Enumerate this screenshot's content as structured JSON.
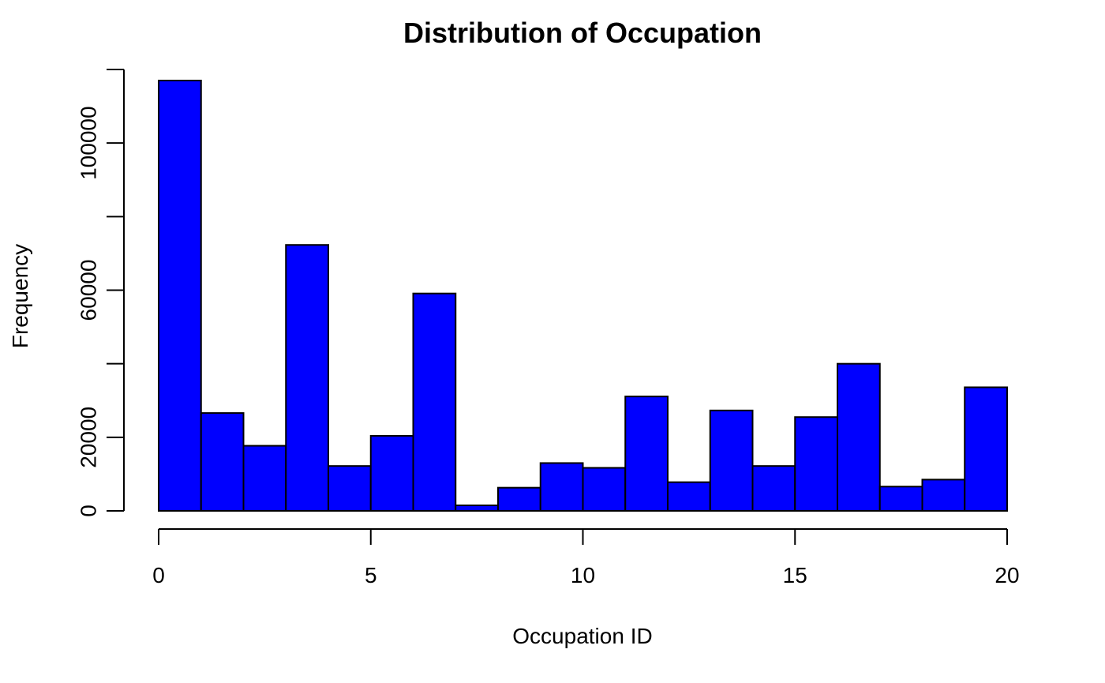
{
  "chart_data": {
    "type": "bar",
    "subtype": "histogram",
    "title": "Distribution of Occupation",
    "xlabel": "Occupation ID",
    "ylabel": "Frequency",
    "bar_color": "#0000ff",
    "edge_color": "#000000",
    "bins": [
      {
        "x0": 0,
        "x1": 1,
        "count": 117000
      },
      {
        "x0": 1,
        "x1": 2,
        "count": 26600
      },
      {
        "x0": 2,
        "x1": 3,
        "count": 17700
      },
      {
        "x0": 3,
        "x1": 4,
        "count": 72300
      },
      {
        "x0": 4,
        "x1": 5,
        "count": 12200
      },
      {
        "x0": 5,
        "x1": 6,
        "count": 20400
      },
      {
        "x0": 6,
        "x1": 7,
        "count": 59100
      },
      {
        "x0": 7,
        "x1": 8,
        "count": 1500
      },
      {
        "x0": 8,
        "x1": 9,
        "count": 6300
      },
      {
        "x0": 9,
        "x1": 10,
        "count": 13000
      },
      {
        "x0": 10,
        "x1": 11,
        "count": 11700
      },
      {
        "x0": 11,
        "x1": 12,
        "count": 31100
      },
      {
        "x0": 12,
        "x1": 13,
        "count": 7800
      },
      {
        "x0": 13,
        "x1": 14,
        "count": 27300
      },
      {
        "x0": 14,
        "x1": 15,
        "count": 12200
      },
      {
        "x0": 15,
        "x1": 16,
        "count": 25500
      },
      {
        "x0": 16,
        "x1": 17,
        "count": 40000
      },
      {
        "x0": 17,
        "x1": 18,
        "count": 6600
      },
      {
        "x0": 18,
        "x1": 19,
        "count": 8500
      },
      {
        "x0": 19,
        "x1": 20,
        "count": 33600
      }
    ],
    "xlim": [
      0,
      20
    ],
    "ylim": [
      0,
      120000
    ],
    "x_ticks": [
      0,
      5,
      10,
      15,
      20
    ],
    "x_tick_labels": [
      "0",
      "5",
      "10",
      "15",
      "20"
    ],
    "y_ticks": [
      0,
      20000,
      40000,
      60000,
      80000,
      100000,
      120000
    ],
    "y_tick_labels": [
      "0",
      "20000",
      "",
      "60000",
      "",
      "100000",
      ""
    ],
    "grid": false,
    "legend": "none"
  }
}
